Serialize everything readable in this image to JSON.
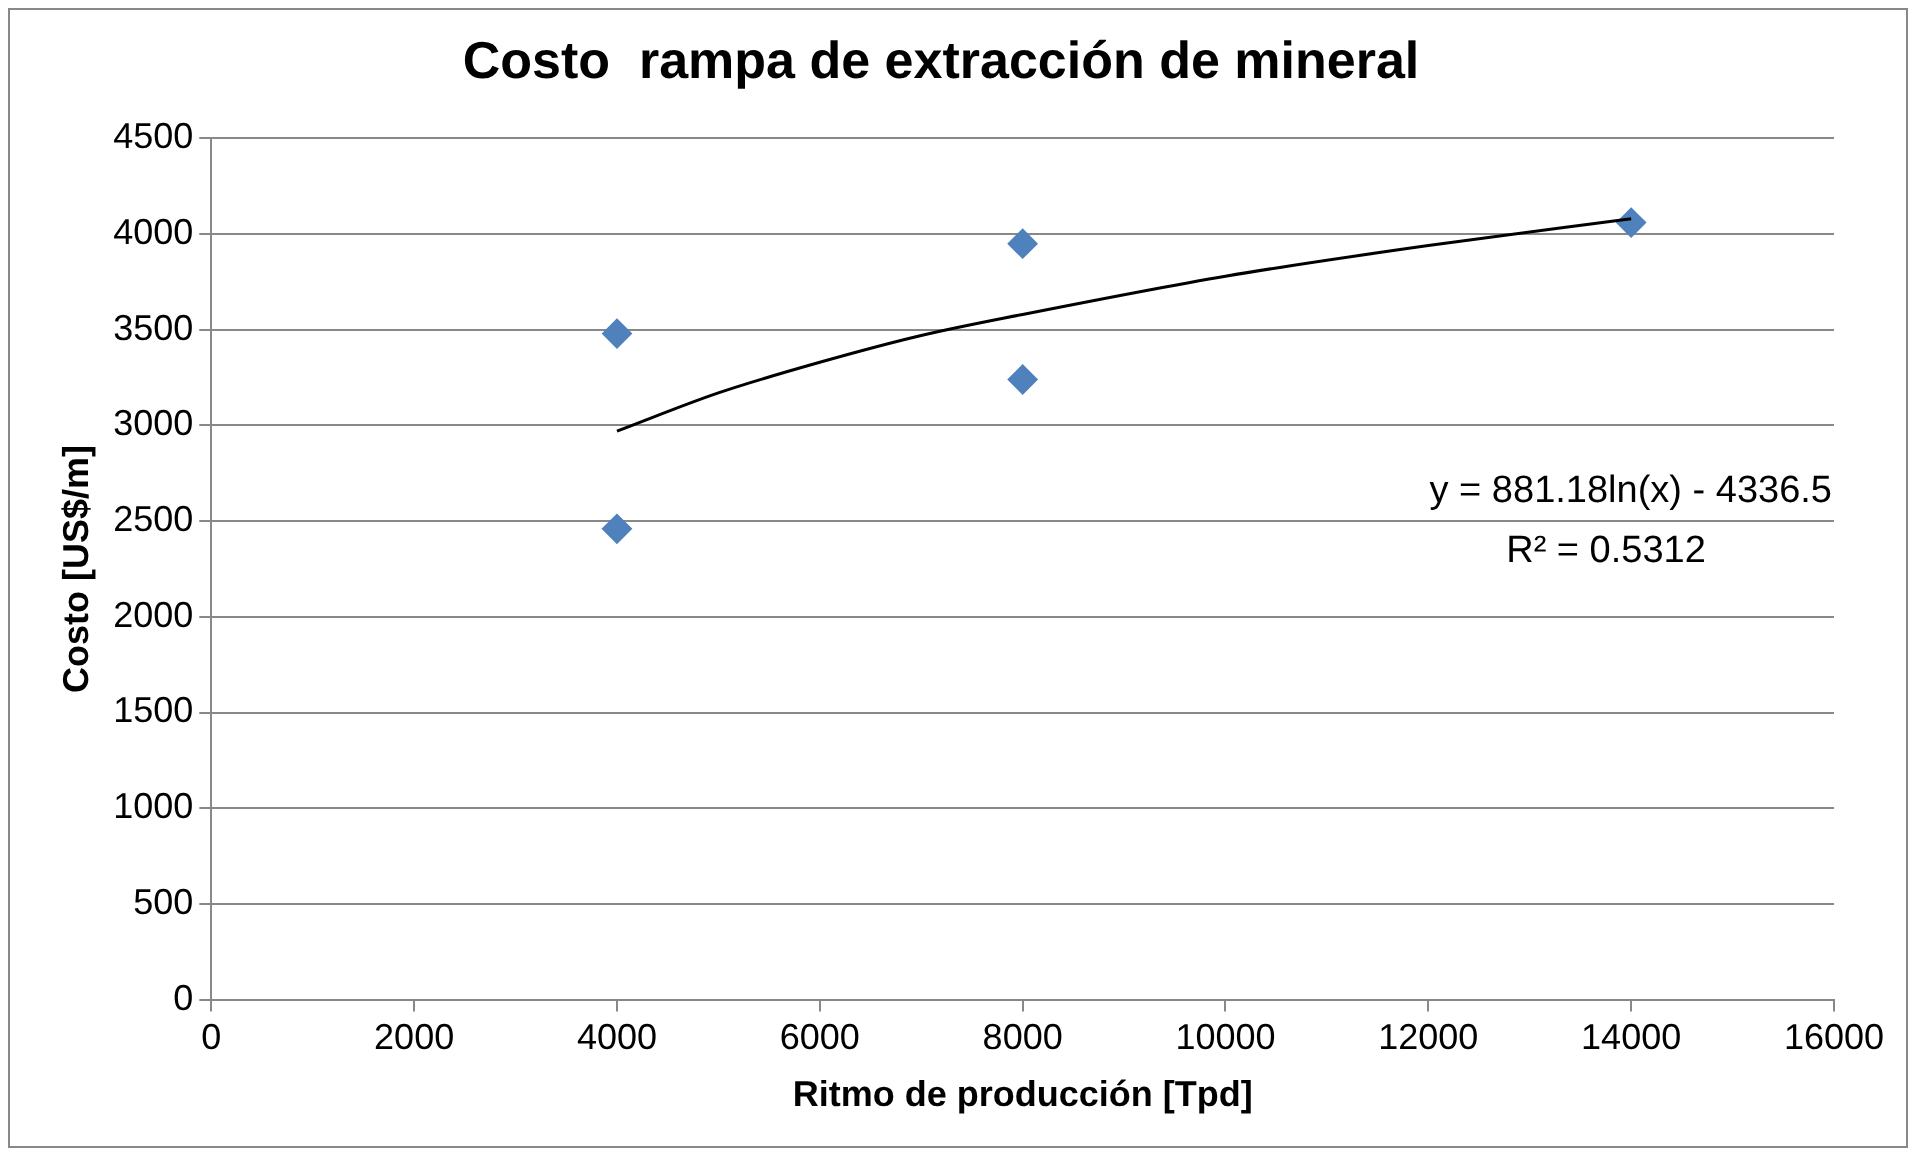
{
  "chart_data": {
    "type": "scatter",
    "title": "Costo  rampa de extracción de mineral",
    "xlabel": "Ritmo de producción [Tpd]",
    "ylabel": "Costo [US$/m]",
    "xlim": [
      0,
      16000
    ],
    "xticks": [
      0,
      2000,
      4000,
      6000,
      8000,
      10000,
      12000,
      14000,
      16000
    ],
    "ylim": [
      0,
      4500
    ],
    "yticks": [
      0,
      500,
      1000,
      1500,
      2000,
      2500,
      3000,
      3500,
      4000,
      4500
    ],
    "grid": "y",
    "legend": false,
    "marker": "diamond",
    "series": [
      {
        "type": "scatter",
        "color": "#4f81bd",
        "x": [
          4000,
          4000,
          8000,
          8000,
          14000
        ],
        "values": [
          3480,
          2460,
          3950,
          3240,
          4060
        ]
      },
      {
        "type": "line",
        "color": "#000000",
        "marker": "none",
        "line_style": "solid",
        "x": [
          4000,
          5000,
          6000,
          7000,
          8000,
          10000,
          12000,
          14000
        ],
        "values": [
          2970,
          3170,
          3330,
          3470,
          3580,
          3780,
          3940,
          4080
        ]
      }
    ],
    "annotations": [
      "y = 881.18ln(x) - 4336.5",
      "R² = 0.5312"
    ]
  }
}
